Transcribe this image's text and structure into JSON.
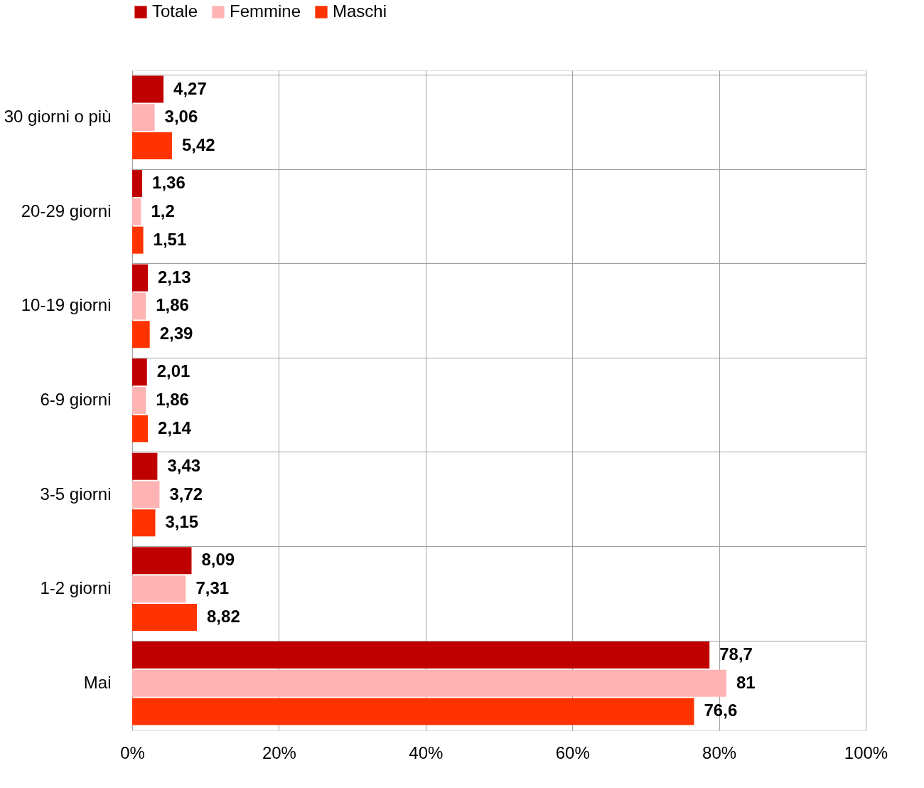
{
  "chart_data": {
    "type": "bar",
    "orientation": "horizontal",
    "categories": [
      "30 giorni o più",
      "20-29 giorni",
      "10-19 giorni",
      "6-9 giorni",
      "3-5 giorni",
      "1-2 giorni",
      "Mai"
    ],
    "series": [
      {
        "name": "Totale",
        "color": "#c00000",
        "values": [
          4.27,
          1.36,
          2.13,
          2.01,
          3.43,
          8.09,
          78.7
        ],
        "value_labels": [
          "4,27",
          "1,36",
          "2,13",
          "2,01",
          "3,43",
          "8,09",
          "78,7"
        ]
      },
      {
        "name": "Femmine",
        "color": "#ffb3b3",
        "values": [
          3.06,
          1.2,
          1.86,
          1.86,
          3.72,
          7.31,
          81
        ],
        "value_labels": [
          "3,06",
          "1,2",
          "1,86",
          "1,86",
          "3,72",
          "7,31",
          "81"
        ]
      },
      {
        "name": "Maschi",
        "color": "#ff3300",
        "values": [
          5.42,
          1.51,
          2.39,
          2.14,
          3.15,
          8.82,
          76.6
        ],
        "value_labels": [
          "5,42",
          "1,51",
          "2,39",
          "2,14",
          "3,15",
          "8,82",
          "76,6"
        ]
      }
    ],
    "xlim": [
      0,
      100
    ],
    "xticks": [
      {
        "value": 0,
        "label": "0%"
      },
      {
        "value": 20,
        "label": "20%"
      },
      {
        "value": 40,
        "label": "40%"
      },
      {
        "value": 60,
        "label": "60%"
      },
      {
        "value": 80,
        "label": "80%"
      },
      {
        "value": 100,
        "label": "100%"
      }
    ],
    "grid": true,
    "legend": "top"
  }
}
